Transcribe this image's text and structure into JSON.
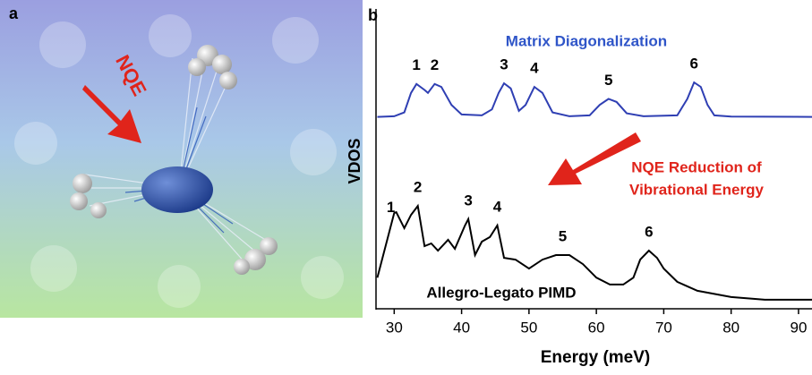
{
  "panel_a": {
    "label": "a",
    "annotation": "NQE"
  },
  "chart_data": {
    "type": "line",
    "panel_label": "b",
    "xlabel": "Energy (meV)",
    "ylabel": "VDOS",
    "xlim": [
      27.3,
      92
    ],
    "xticks": [
      30,
      40,
      50,
      60,
      70,
      80,
      90
    ],
    "ylim": [
      0,
      1
    ],
    "annotation": [
      "NQE Reduction of",
      "Vibrational Energy"
    ],
    "annotation_color": "#e0241b",
    "series": [
      {
        "name": "Matrix Diagonalization",
        "color": "#2f3fb3",
        "x": [
          27.5,
          30,
          31.5,
          32.5,
          33.3,
          34.5,
          35,
          36,
          37,
          38.5,
          40,
          43,
          44.5,
          45.5,
          46.3,
          47.3,
          48.5,
          49.5,
          50.8,
          52,
          53.5,
          56,
          59,
          60.5,
          61.8,
          63,
          64.5,
          67,
          72,
          73.5,
          74.5,
          75.5,
          76.5,
          77.5,
          80,
          92
        ],
        "values": [
          0.64,
          0.642,
          0.655,
          0.72,
          0.75,
          0.73,
          0.72,
          0.75,
          0.74,
          0.68,
          0.648,
          0.645,
          0.665,
          0.72,
          0.752,
          0.735,
          0.66,
          0.68,
          0.74,
          0.72,
          0.655,
          0.642,
          0.645,
          0.68,
          0.7,
          0.69,
          0.652,
          0.642,
          0.645,
          0.7,
          0.755,
          0.74,
          0.68,
          0.645,
          0.641,
          0.64
        ],
        "peak_labels": [
          {
            "label": "1",
            "x": 33.3
          },
          {
            "label": "2",
            "x": 36
          },
          {
            "label": "3",
            "x": 46.3
          },
          {
            "label": "4",
            "x": 50.8
          },
          {
            "label": "5",
            "x": 61.8
          },
          {
            "label": "6",
            "x": 74.5
          }
        ]
      },
      {
        "name": "Allegro-Legato PIMD",
        "color": "#000000",
        "x": [
          27.5,
          30,
          30.3,
          31.5,
          32.5,
          33.5,
          34.5,
          35.5,
          36.5,
          38,
          39,
          40.5,
          41,
          42,
          43,
          44.2,
          45.3,
          46.3,
          48,
          50,
          52,
          54,
          56,
          58,
          60,
          62,
          64,
          65.5,
          66.5,
          67.8,
          69,
          70,
          72,
          75,
          80,
          85,
          92
        ],
        "values": [
          0.104,
          0.319,
          0.322,
          0.269,
          0.313,
          0.343,
          0.209,
          0.218,
          0.194,
          0.23,
          0.2,
          0.278,
          0.299,
          0.179,
          0.224,
          0.239,
          0.278,
          0.17,
          0.164,
          0.134,
          0.164,
          0.179,
          0.179,
          0.149,
          0.104,
          0.081,
          0.081,
          0.104,
          0.164,
          0.194,
          0.17,
          0.134,
          0.09,
          0.06,
          0.039,
          0.03,
          0.03
        ],
        "peak_labels": [
          {
            "label": "1",
            "x": 29.5
          },
          {
            "label": "2",
            "x": 33.5
          },
          {
            "label": "3",
            "x": 41
          },
          {
            "label": "4",
            "x": 45.3
          },
          {
            "label": "5",
            "x": 55
          },
          {
            "label": "6",
            "x": 67.8
          }
        ]
      }
    ]
  }
}
